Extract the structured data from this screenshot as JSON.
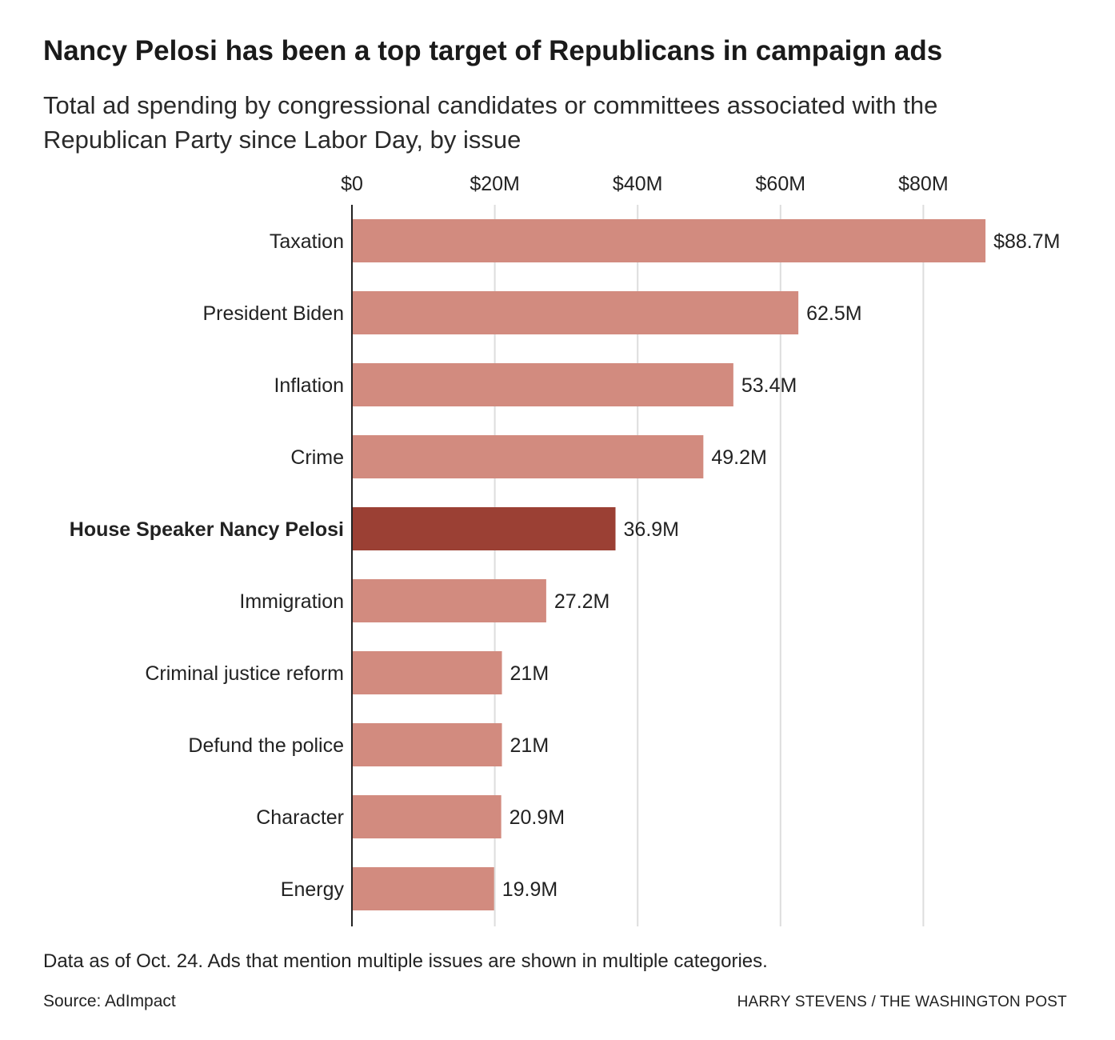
{
  "title": "Nancy Pelosi has been a top target of Republicans in campaign ads",
  "subtitle": "Total ad spending by congressional candidates or committees associated with the Republican Party since Labor Day, by issue",
  "note": "Data as of Oct. 24. Ads that mention multiple issues are shown in multiple categories.",
  "source": "Source: AdImpact",
  "credit": "HARRY STEVENS / THE WASHINGTON POST",
  "colors": {
    "bar": "#d28b7f",
    "highlight": "#9b4034",
    "grid": "#dddddd",
    "axis": "#222222"
  },
  "chart_data": {
    "type": "bar",
    "orientation": "horizontal",
    "unit": "million dollars",
    "xlim": [
      0,
      90
    ],
    "ticks": [
      {
        "value": 0,
        "label": "$0"
      },
      {
        "value": 20,
        "label": "$20M"
      },
      {
        "value": 40,
        "label": "$40M"
      },
      {
        "value": 60,
        "label": "$60M"
      },
      {
        "value": 80,
        "label": "$80M"
      }
    ],
    "grid": true,
    "categories": [
      "Taxation",
      "President Biden",
      "Inflation",
      "Crime",
      "House Speaker Nancy Pelosi",
      "Immigration",
      "Criminal justice reform",
      "Defund the police",
      "Character",
      "Energy"
    ],
    "values": [
      88.7,
      62.5,
      53.4,
      49.2,
      36.9,
      27.2,
      21,
      21,
      20.9,
      19.9
    ],
    "value_labels": [
      "$88.7M",
      "62.5M",
      "53.4M",
      "49.2M",
      "36.9M",
      "27.2M",
      "21M",
      "21M",
      "20.9M",
      "19.9M"
    ],
    "highlight": [
      "House Speaker Nancy Pelosi"
    ]
  }
}
